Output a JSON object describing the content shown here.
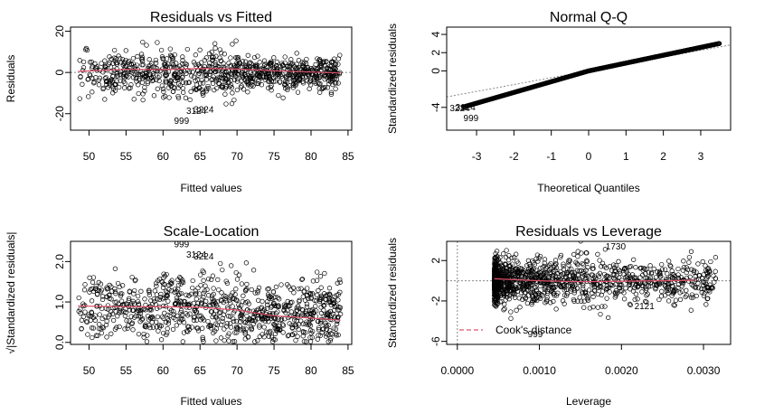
{
  "chart_data": [
    {
      "type": "scatter",
      "title": "Residuals vs Fitted",
      "xlabel": "Fitted values",
      "ylabel": "Residuals",
      "xlim": [
        47.5,
        85.5
      ],
      "ylim": [
        -28,
        22
      ],
      "xticks": [
        50,
        55,
        60,
        65,
        70,
        75,
        80,
        85
      ],
      "yticks": [
        -20,
        0,
        20
      ],
      "ref_line": {
        "y": 0
      },
      "trend": {
        "x": [
          48.5,
          55,
          60,
          65,
          70,
          75,
          80,
          84
        ],
        "y": [
          0.5,
          1.5,
          1.4,
          2.0,
          1.6,
          0.8,
          0.2,
          -0.3
        ]
      },
      "labeled_points": [
        {
          "label": "999",
          "x": 62.5,
          "y": -25
        },
        {
          "label": "3124",
          "x": 64.5,
          "y": -20
        },
        {
          "label": "3224",
          "x": 65.5,
          "y": -19.5
        }
      ]
    },
    {
      "type": "scatter",
      "title": "Normal Q-Q",
      "xlabel": "Theoretical Quantiles",
      "ylabel": "Standardized residuals",
      "xlim": [
        -3.8,
        3.8
      ],
      "ylim": [
        -6.5,
        4.8
      ],
      "xticks": [
        -3,
        -2,
        -1,
        0,
        1,
        2,
        3
      ],
      "yticks": [
        -4,
        0,
        2,
        4
      ],
      "ref_line": {
        "intercept": 0,
        "slope": 0.75
      },
      "labeled_points": [
        {
          "label": "3224",
          "x": -3.45,
          "y": -4.4
        },
        {
          "label": "3124",
          "x": -3.3,
          "y": -4.3
        },
        {
          "label": "999",
          "x": -3.15,
          "y": -5.5
        }
      ]
    },
    {
      "type": "scatter",
      "title": "Scale-Location",
      "xlabel": "Fitted values",
      "ylabel": "√|Standardized residuals|",
      "xlim": [
        47.5,
        85.5
      ],
      "ylim": [
        -0.05,
        2.5
      ],
      "xticks": [
        50,
        55,
        60,
        65,
        70,
        75,
        80,
        85
      ],
      "yticks": [
        0.0,
        1.0,
        2.0
      ],
      "ytick_labels": [
        "0.0",
        "1.0",
        "2.0"
      ],
      "trend": {
        "x": [
          48.5,
          55,
          60,
          65,
          70,
          75,
          80,
          84
        ],
        "y": [
          0.9,
          0.88,
          0.88,
          0.87,
          0.8,
          0.66,
          0.6,
          0.55
        ]
      },
      "labeled_points": [
        {
          "label": "999",
          "x": 62.5,
          "y": 2.35
        },
        {
          "label": "3124",
          "x": 64.5,
          "y": 2.1
        },
        {
          "label": "3224",
          "x": 65.5,
          "y": 2.05
        }
      ]
    },
    {
      "type": "scatter",
      "title": "Residuals vs Leverage",
      "xlabel": "Leverage",
      "ylabel": "Standardized residuals",
      "xlim": [
        -0.00013,
        0.00333
      ],
      "ylim": [
        -6.3,
        3.9
      ],
      "xticks": [
        0.0,
        0.001,
        0.002,
        0.003
      ],
      "xtick_labels": [
        "0.0000",
        "0.0010",
        "0.0020",
        "0.0030"
      ],
      "yticks": [
        -6,
        -2,
        2
      ],
      "ref_line": {
        "y": 0
      },
      "trend": {
        "x": [
          0.00045,
          0.001,
          0.0015,
          0.002,
          0.0025,
          0.0029
        ],
        "y": [
          0.2,
          0.0,
          -0.1,
          -0.05,
          0.0,
          0.05
        ]
      },
      "legend": {
        "label": "Cook's distance",
        "color": "#df536b",
        "placement": "bottom-left"
      },
      "labeled_points": [
        {
          "label": "1730",
          "x": 0.00193,
          "y": 3.1
        },
        {
          "label": "2121",
          "x": 0.00228,
          "y": -2.8
        },
        {
          "label": "999",
          "x": 0.00095,
          "y": -5.6
        }
      ]
    }
  ],
  "colors": {
    "trend": "#df536b",
    "reference": "#888888",
    "points": "#000000"
  }
}
